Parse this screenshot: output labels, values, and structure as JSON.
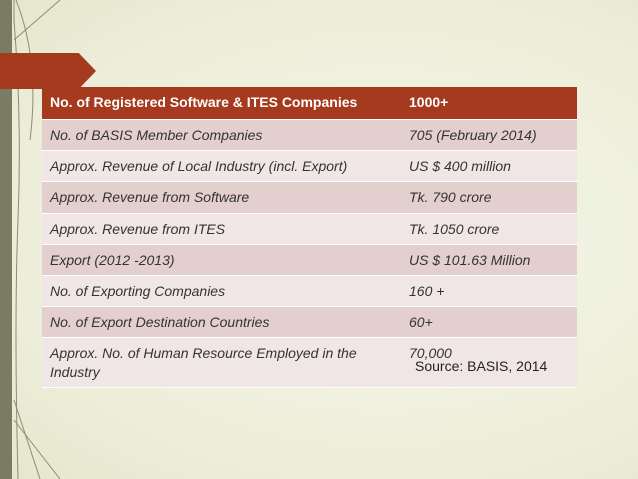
{
  "table": {
    "header": {
      "label": "No. of Registered Software & ITES Companies",
      "value": "1000+"
    },
    "rows": [
      {
        "label": "No. of BASIS Member Companies",
        "value": "705 (February 2014)"
      },
      {
        "label": "Approx. Revenue of Local Industry (incl. Export)",
        "value": "US $ 400 million"
      },
      {
        "label": "Approx. Revenue from Software",
        "value": "Tk. 790 crore"
      },
      {
        "label": "Approx. Revenue from ITES",
        "value": "Tk. 1050 crore"
      },
      {
        "label": "Export (2012 -2013)",
        "value": "US $ 101.63 Million"
      },
      {
        "label": "No. of Exporting Companies",
        "value": "160 +"
      },
      {
        "label": "No. of Export Destination Countries",
        "value": "60+"
      },
      {
        "label": "Approx. No. of Human Resource Employed in the Industry",
        "value": "70,000"
      }
    ]
  },
  "source": "Source: BASIS, 2014",
  "colors": {
    "accent": "#a63a1e",
    "row_dark": "#e4cfcf",
    "row_light": "#f1e6e6",
    "band": "#7b7b63"
  }
}
